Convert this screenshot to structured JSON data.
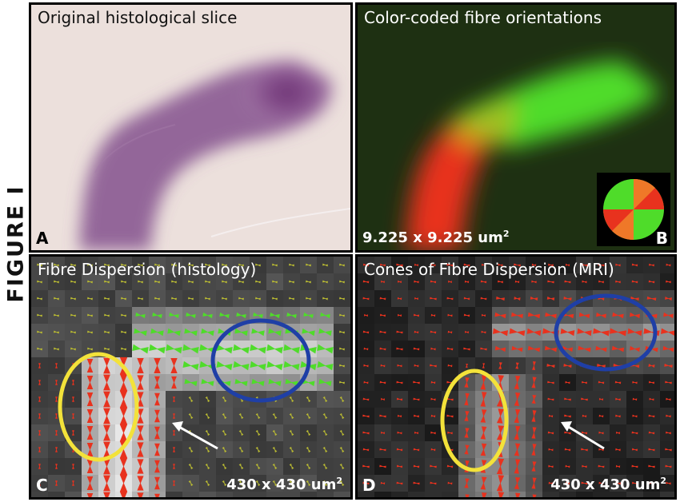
{
  "figure_label": "FIGURE I",
  "panels": {
    "a": {
      "letter": "A",
      "title": "Original histological slice"
    },
    "b": {
      "letter": "B",
      "title": "Color-coded fibre orientations",
      "scale_value": "9.225 x 9.225 um",
      "scale_exp": "2"
    },
    "c": {
      "letter": "C",
      "title": "Fibre Dispersion (histology)",
      "scale_value": "430 x 430 um",
      "scale_exp": "2"
    },
    "d": {
      "letter": "D",
      "title": "Cones of Fibre Dispersion (MRI)",
      "scale_value": "430 x 430 um",
      "scale_exp": "2"
    }
  },
  "colors": {
    "stain": "#7a3f80",
    "red": "#e8321e",
    "green": "#4fdc2a",
    "yellow": "#f3e23a",
    "blue": "#1f3fa6"
  }
}
